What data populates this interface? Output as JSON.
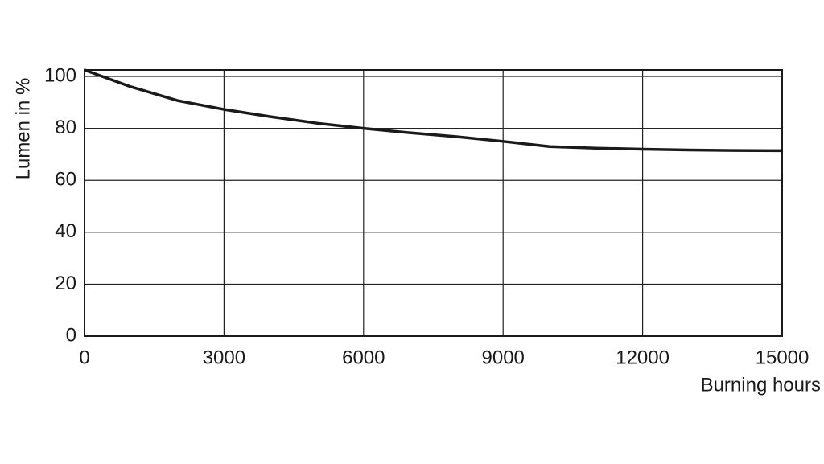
{
  "chart_data": {
    "type": "line",
    "x_label": "Burning hours",
    "y_label": "Lumen in %",
    "x": [
      0,
      1000,
      2000,
      3000,
      4000,
      5000,
      6000,
      7000,
      8000,
      9000,
      10000,
      11000,
      12000,
      13000,
      14000,
      15000
    ],
    "series": [
      {
        "name": "Lumen",
        "color": "#1a1a1a",
        "values": [
          102.5,
          96,
          90.7,
          87.3,
          84.5,
          82,
          80,
          78.3,
          76.8,
          75,
          73,
          72.4,
          72,
          71.7,
          71.5,
          71.4
        ]
      }
    ],
    "xlim": [
      0,
      15000
    ],
    "xticks": [
      0,
      3000,
      6000,
      9000,
      12000,
      15000
    ],
    "ylim": [
      0,
      102.5
    ],
    "yticks": [
      0,
      20,
      40,
      60,
      80,
      100
    ],
    "grid": true
  }
}
